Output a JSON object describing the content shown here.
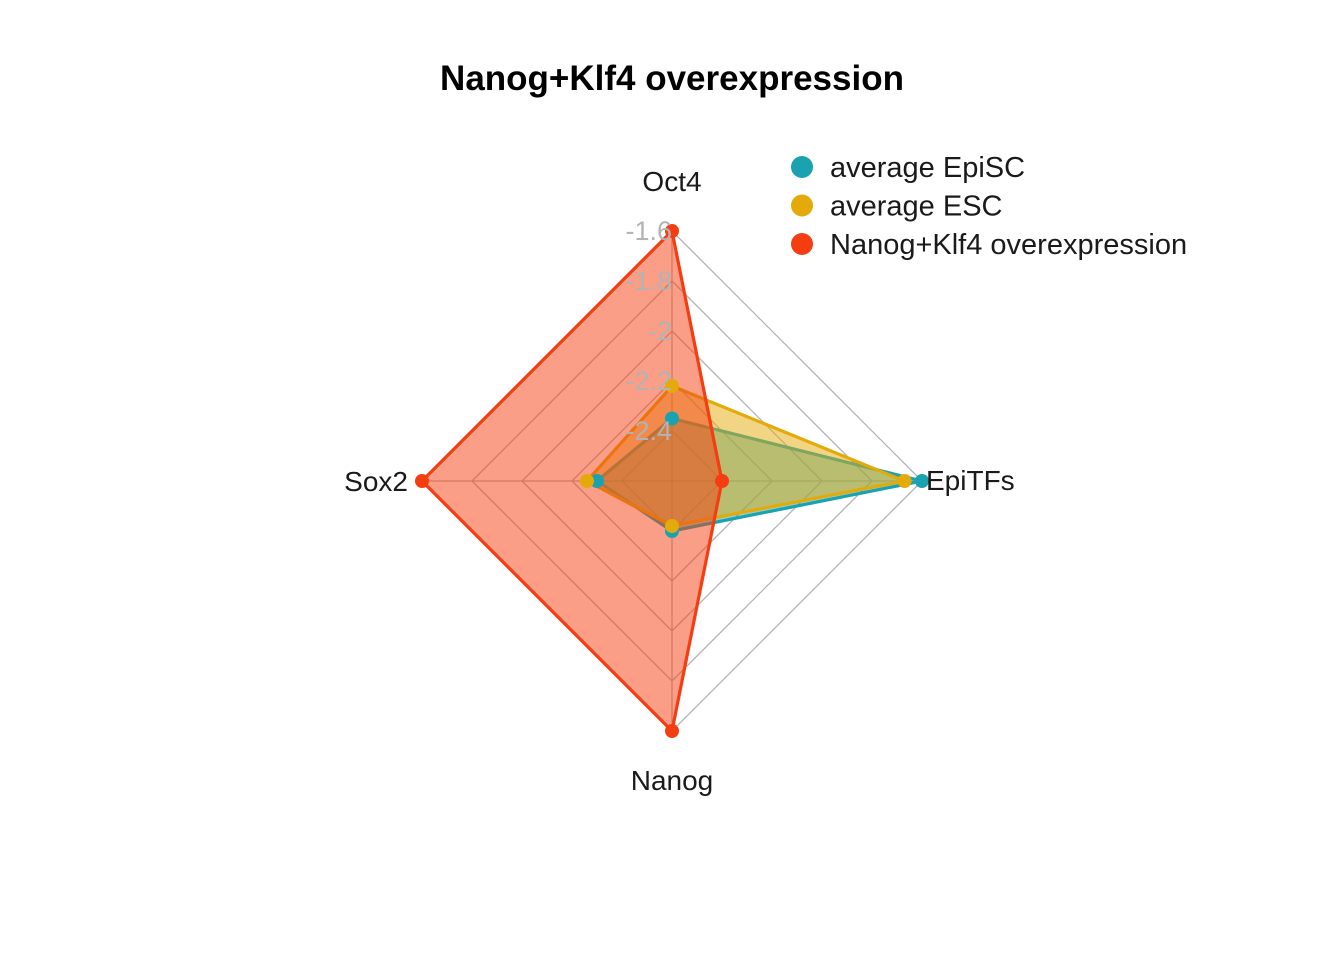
{
  "chart_data": {
    "type": "radar",
    "title": "Nanog+Klf4 overexpression",
    "axes": [
      "Oct4",
      "EpiTFs",
      "Nanog",
      "Sox2"
    ],
    "tick_labels": [
      "-1.6",
      "-1.8",
      "-2",
      "-2.2",
      "-2.4"
    ],
    "range": [
      -2.6,
      -1.6
    ],
    "grid": true,
    "legend_position": "top-right",
    "series": [
      {
        "name": "average EpiSC",
        "color": "#1aa2b0",
        "values": [
          -2.35,
          -1.6,
          -2.4,
          -2.3
        ]
      },
      {
        "name": "average ESC",
        "color": "#e3aa0a",
        "values": [
          -2.22,
          -1.67,
          -2.42,
          -2.26
        ]
      },
      {
        "name": "Nanog+Klf4 overexpression",
        "color": "#f53d12",
        "values": [
          -1.6,
          -2.4,
          -1.6,
          -1.6
        ]
      }
    ]
  }
}
